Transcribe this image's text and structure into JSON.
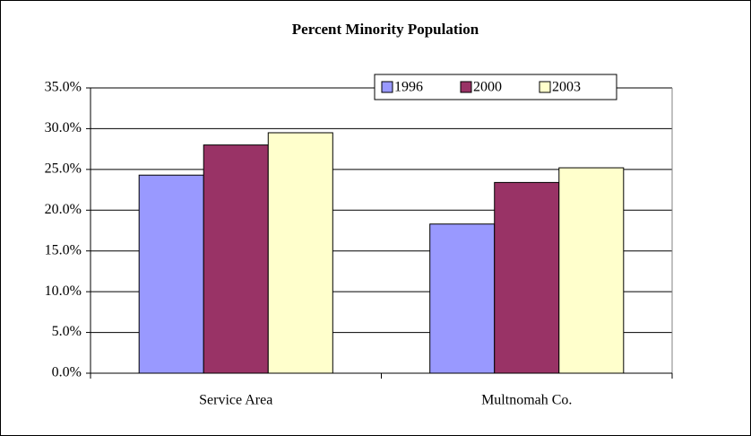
{
  "chart_data": {
    "type": "bar",
    "title": "Percent Minority Population",
    "categories": [
      "Service Area",
      "Multnomah Co."
    ],
    "series": [
      {
        "name": "1996",
        "color": "#9999ff",
        "values": [
          24.3,
          18.3
        ]
      },
      {
        "name": "2000",
        "color": "#993366",
        "values": [
          28.0,
          23.4
        ]
      },
      {
        "name": "2003",
        "color": "#ffffcc",
        "values": [
          29.5,
          25.2
        ]
      }
    ],
    "ylim": [
      0,
      35
    ],
    "yticks": [
      {
        "value": 0,
        "label": "0.0%"
      },
      {
        "value": 5,
        "label": "5.0%"
      },
      {
        "value": 10,
        "label": "10.0%"
      },
      {
        "value": 15,
        "label": "15.0%"
      },
      {
        "value": 20,
        "label": "20.0%"
      },
      {
        "value": 25,
        "label": "25.0%"
      },
      {
        "value": 30,
        "label": "30.0%"
      },
      {
        "value": 35,
        "label": "35.0%"
      }
    ],
    "grid": true,
    "legend": "top-right"
  }
}
